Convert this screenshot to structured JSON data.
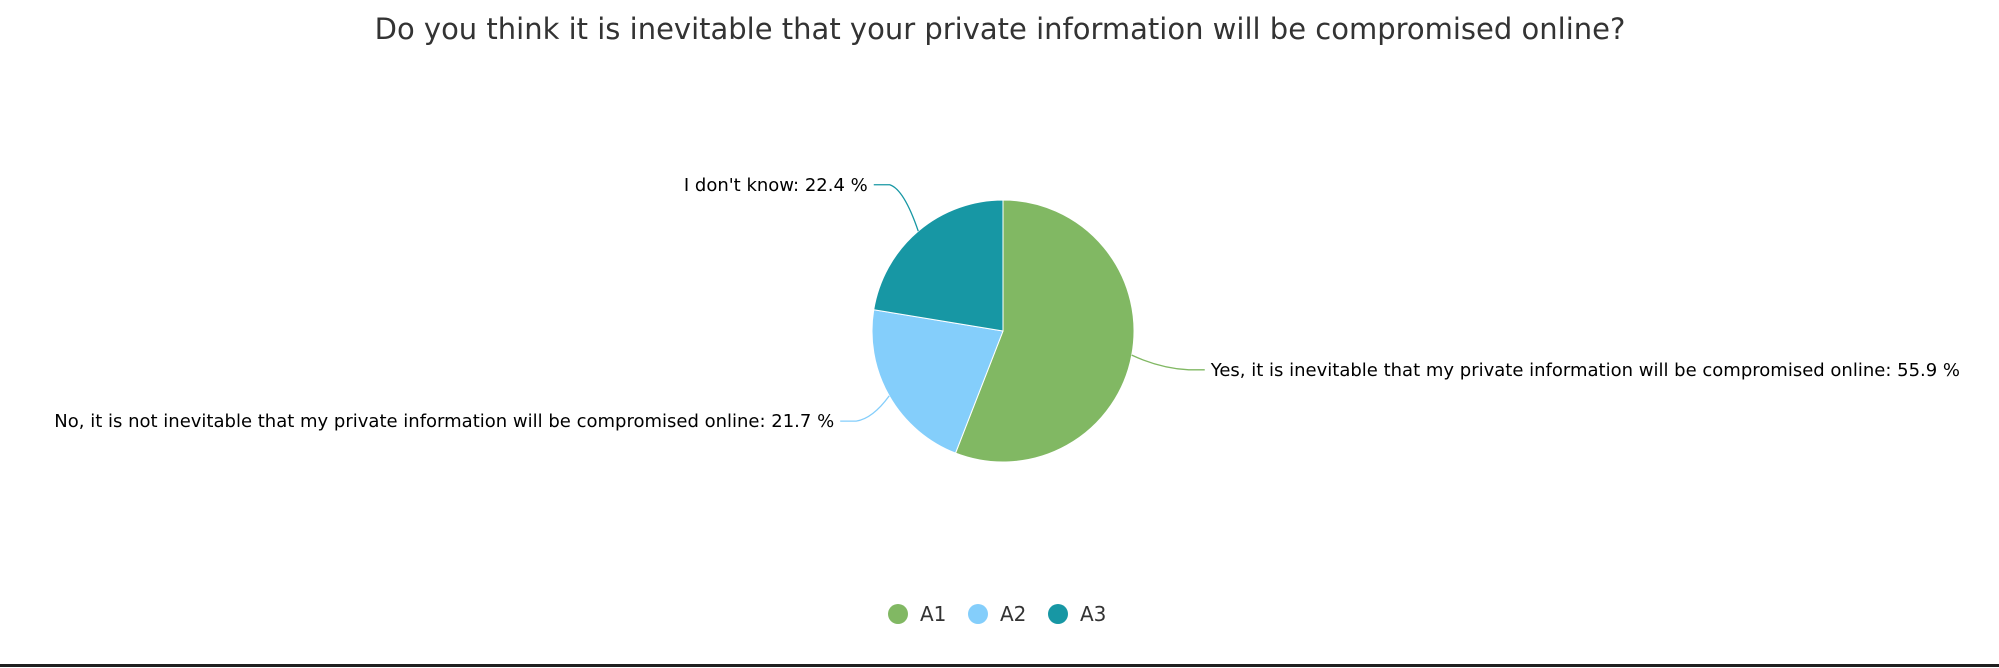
{
  "chart_data": {
    "type": "pie",
    "title": "Do you think it is inevitable that your private information will be compromised online?",
    "slices": [
      {
        "key": "A1",
        "label": "Yes, it is inevitable that my private information will be compromised online",
        "value": 55.9,
        "color": "#81b863"
      },
      {
        "key": "A2",
        "label": "No, it is not inevitable that my private information will be compromised online",
        "value": 21.7,
        "color": "#84cefb"
      },
      {
        "key": "A3",
        "label": "I don't know",
        "value": 22.4,
        "color": "#1797a4"
      }
    ],
    "value_suffix": " %",
    "legend": {
      "placement": "bottom-center",
      "entries": [
        "A1",
        "A2",
        "A3"
      ]
    }
  }
}
